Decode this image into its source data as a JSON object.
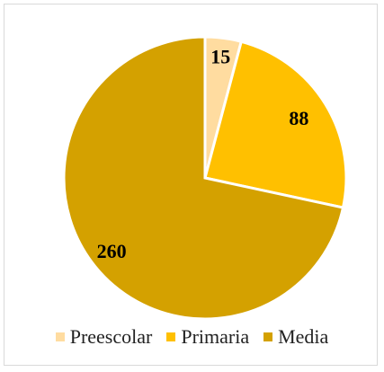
{
  "chart_data": {
    "type": "pie",
    "title": "",
    "categories": [
      "Preescolar",
      "Primaria",
      "Media"
    ],
    "values": [
      15,
      88,
      260
    ],
    "labels": [
      "15",
      "88",
      "260"
    ],
    "colors": [
      "#FFDCA0",
      "#FFC000",
      "#D4A100"
    ],
    "legend_position": "bottom"
  },
  "legend": {
    "items": [
      {
        "label": "Preescolar",
        "color": "#FFDCA0"
      },
      {
        "label": "Primaria",
        "color": "#FFC000"
      },
      {
        "label": "Media",
        "color": "#D4A100"
      }
    ]
  }
}
